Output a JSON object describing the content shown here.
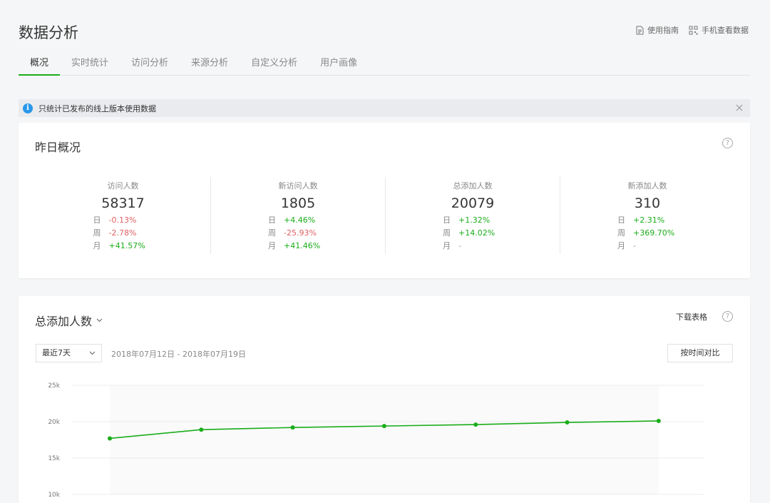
{
  "header": {
    "title": "数据分析",
    "links": [
      {
        "label": "使用指南",
        "icon": "document-icon"
      },
      {
        "label": "手机查看数据",
        "icon": "qr-code-icon"
      }
    ]
  },
  "tabs": [
    {
      "label": "概况",
      "active": true
    },
    {
      "label": "实时统计"
    },
    {
      "label": "访问分析"
    },
    {
      "label": "来源分析"
    },
    {
      "label": "自定义分析"
    },
    {
      "label": "用户画像"
    }
  ],
  "notice": {
    "icon": "i",
    "text": "只统计已发布的线上版本使用数据"
  },
  "overview": {
    "title": "昨日概况",
    "help": "?",
    "stats": [
      {
        "label": "访问人数",
        "value": "58317",
        "rows": [
          {
            "k": "日",
            "v": "-0.13%",
            "t": "neg"
          },
          {
            "k": "周",
            "v": "-2.78%",
            "t": "neg"
          },
          {
            "k": "月",
            "v": "+41.57%",
            "t": "pos"
          }
        ]
      },
      {
        "label": "新访问人数",
        "value": "1805",
        "rows": [
          {
            "k": "日",
            "v": "+4.46%",
            "t": "pos"
          },
          {
            "k": "周",
            "v": "-25.93%",
            "t": "neg"
          },
          {
            "k": "月",
            "v": "+41.46%",
            "t": "pos"
          }
        ]
      },
      {
        "label": "总添加人数",
        "value": "20079",
        "rows": [
          {
            "k": "日",
            "v": "+1.32%",
            "t": "pos"
          },
          {
            "k": "周",
            "v": "+14.02%",
            "t": "pos"
          },
          {
            "k": "月",
            "v": "-",
            "t": "neu"
          }
        ]
      },
      {
        "label": "新添加人数",
        "value": "310",
        "rows": [
          {
            "k": "日",
            "v": "+2.31%",
            "t": "pos"
          },
          {
            "k": "周",
            "v": "+369.70%",
            "t": "pos"
          },
          {
            "k": "月",
            "v": "-",
            "t": "neu"
          }
        ]
      }
    ]
  },
  "trend": {
    "title": "总添加人数",
    "download": "下载表格",
    "help": "?",
    "range": "最近7天",
    "dates": "2018年07月12日 - 2018年07月19日",
    "compare": "按时间对比"
  },
  "colors": {
    "accent": "#1aad19",
    "negative": "#e15f63",
    "info": "#2a98e9"
  },
  "chart_data": {
    "type": "line",
    "y_ticks": [
      "25k",
      "20k",
      "15k",
      "10k"
    ],
    "ylim": [
      10000,
      25000
    ],
    "series": [
      {
        "values": [
          17700,
          18900,
          19200,
          19400,
          19600,
          19900,
          20100
        ]
      }
    ]
  }
}
